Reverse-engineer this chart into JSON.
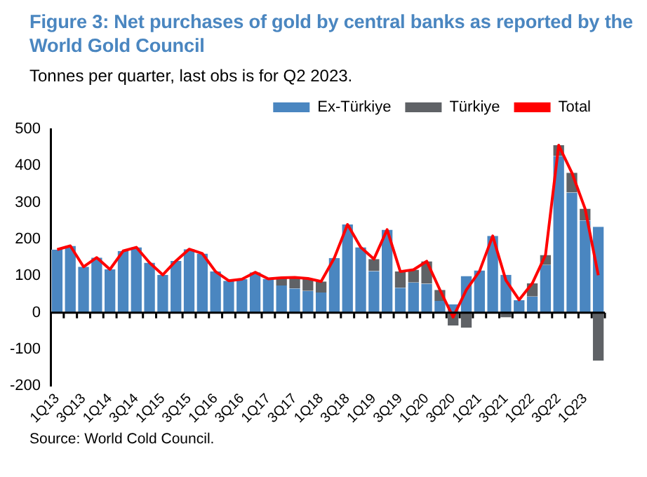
{
  "chart_data": {
    "type": "bar",
    "title": "Figure 3: Net purchases of gold by central banks as reported by the World Gold Council",
    "subtitle": "Tonnes per quarter, last obs is for Q2 2023.",
    "stacked": true,
    "legend": "top right",
    "grid": false,
    "categories": [
      "1Q13",
      null,
      "3Q13",
      null,
      "1Q14",
      null,
      "3Q14",
      null,
      "1Q15",
      null,
      "3Q15",
      null,
      "1Q16",
      null,
      "3Q16",
      null,
      "1Q17",
      null,
      "3Q17",
      null,
      "1Q18",
      null,
      "3Q18",
      null,
      "1Q19",
      null,
      "3Q19",
      null,
      "1Q20",
      null,
      "3Q20",
      null,
      "1Q21",
      null,
      "3Q21",
      null,
      "1Q22",
      null,
      "3Q22",
      null,
      "1Q23",
      null
    ],
    "series": [
      {
        "name": "Ex-Türkiye",
        "color": "#4a86c0",
        "values": [
          172,
          182,
          125,
          150,
          118,
          168,
          178,
          136,
          103,
          141,
          173,
          161,
          112,
          87,
          91,
          110,
          92,
          74,
          66,
          59,
          55,
          149,
          240,
          178,
          113,
          226,
          68,
          82,
          79,
          32,
          23,
          100,
          115,
          209,
          103,
          34,
          44,
          130,
          427,
          327,
          251,
          234
        ]
      },
      {
        "name": "Türkiye",
        "color": "#5f6266",
        "values": [
          0,
          0,
          0,
          0,
          0,
          0,
          0,
          0,
          0,
          0,
          0,
          0,
          0,
          0,
          0,
          0,
          0,
          21,
          30,
          34,
          30,
          0,
          0,
          0,
          33,
          0,
          44,
          35,
          61,
          30,
          -35,
          -41,
          0,
          0,
          -13,
          0,
          36,
          27,
          29,
          54,
          32,
          -131
        ]
      },
      {
        "name": "Total",
        "type": "line",
        "color": "#ff0000",
        "values": [
          172,
          182,
          125,
          150,
          118,
          168,
          178,
          136,
          103,
          141,
          173,
          161,
          112,
          87,
          91,
          110,
          92,
          95,
          96,
          93,
          85,
          149,
          240,
          178,
          146,
          226,
          112,
          117,
          140,
          62,
          -12,
          62,
          113,
          209,
          88,
          35,
          80,
          157,
          456,
          381,
          283,
          102
        ]
      }
    ],
    "ylim": [
      -200,
      500
    ],
    "yticks": [
      -200,
      -100,
      0,
      100,
      200,
      300,
      400,
      500
    ],
    "ref_lines": [
      {
        "axis": "y",
        "value": 0,
        "color": "#000000"
      }
    ],
    "annotations": [
      "Source: World Cold Council."
    ]
  }
}
